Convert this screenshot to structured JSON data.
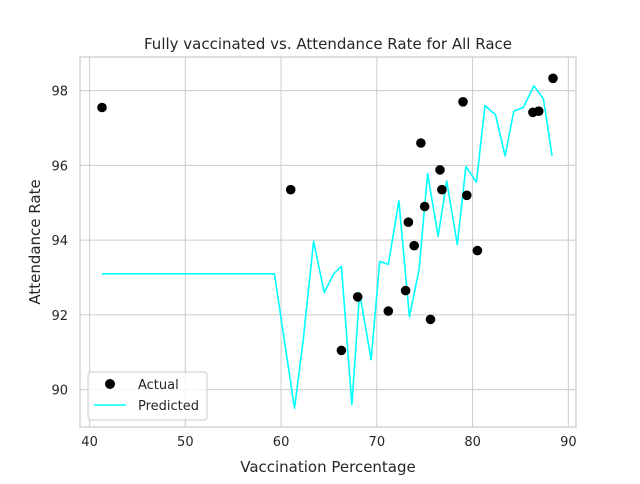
{
  "chart_data": {
    "type": "scatter",
    "title": "Fully vaccinated vs. Attendance Rate for All Race",
    "xlabel": "Vaccination Percentage",
    "ylabel": "Attendance Rate",
    "xlim": [
      39.0,
      90.8
    ],
    "ylim": [
      89.0,
      98.9
    ],
    "xticks": [
      40,
      50,
      60,
      70,
      80,
      90
    ],
    "yticks": [
      90,
      92,
      94,
      96,
      98
    ],
    "grid": true,
    "legend": {
      "position": "lower-left",
      "entries": [
        "Actual",
        "Predicted"
      ]
    },
    "series": [
      {
        "name": "Actual",
        "kind": "scatter",
        "color": "#000000",
        "points": [
          [
            41.3,
            97.55
          ],
          [
            61.0,
            95.35
          ],
          [
            66.3,
            91.05
          ],
          [
            68.0,
            92.48
          ],
          [
            71.2,
            92.1
          ],
          [
            73.0,
            92.65
          ],
          [
            73.3,
            94.48
          ],
          [
            73.9,
            93.85
          ],
          [
            74.6,
            96.6
          ],
          [
            75.0,
            94.9
          ],
          [
            75.6,
            91.88
          ],
          [
            76.6,
            95.88
          ],
          [
            76.8,
            95.35
          ],
          [
            79.0,
            97.7
          ],
          [
            79.4,
            95.2
          ],
          [
            80.5,
            93.72
          ],
          [
            86.3,
            97.42
          ],
          [
            86.9,
            97.45
          ],
          [
            88.4,
            98.33
          ]
        ]
      },
      {
        "name": "Predicted",
        "kind": "line",
        "color": "#00ffff",
        "points": [
          [
            41.3,
            93.1
          ],
          [
            59.3,
            93.1
          ],
          [
            61.4,
            89.5
          ],
          [
            62.3,
            91.3
          ],
          [
            63.4,
            93.97
          ],
          [
            64.5,
            92.6
          ],
          [
            65.5,
            93.1
          ],
          [
            66.3,
            93.3
          ],
          [
            67.4,
            89.6
          ],
          [
            68.2,
            92.6
          ],
          [
            69.4,
            90.8
          ],
          [
            70.3,
            93.43
          ],
          [
            71.2,
            93.35
          ],
          [
            72.3,
            95.05
          ],
          [
            73.4,
            91.95
          ],
          [
            74.4,
            93.2
          ],
          [
            75.3,
            95.78
          ],
          [
            76.4,
            94.1
          ],
          [
            77.3,
            95.58
          ],
          [
            78.4,
            93.88
          ],
          [
            79.3,
            95.97
          ],
          [
            80.4,
            95.55
          ],
          [
            81.3,
            97.6
          ],
          [
            82.4,
            97.35
          ],
          [
            83.4,
            96.25
          ],
          [
            84.3,
            97.45
          ],
          [
            85.3,
            97.55
          ],
          [
            86.4,
            98.13
          ],
          [
            87.4,
            97.78
          ],
          [
            88.3,
            96.25
          ]
        ]
      }
    ]
  }
}
